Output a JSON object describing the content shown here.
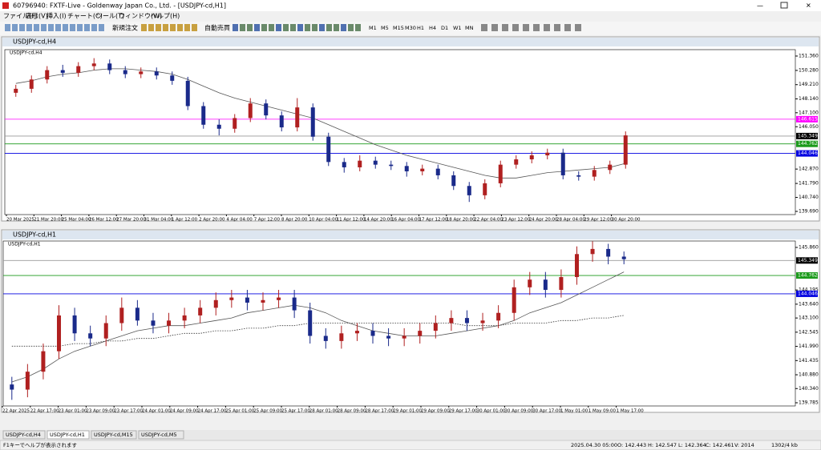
{
  "window": {
    "title": "60796940: FXTF-Live - Goldenway Japan Co., Ltd. - [USDJPY-cd,H1]"
  },
  "menu": [
    "ファイル(F)",
    "表示(V)",
    "挿入(I)",
    "チャート(C)",
    "ツール(T)",
    "ウィンドウ(W)",
    "ヘルプ(H)"
  ],
  "toolbar": {
    "buttons": [
      "新規注文",
      "自動売買"
    ],
    "timeframes": [
      "M1",
      "M5",
      "M15",
      "M30",
      "H1",
      "H4",
      "D1",
      "W1",
      "MN"
    ]
  },
  "charts": [
    {
      "window_title": "USDJPY-cd,H4",
      "symbol_label": "USDJPY-cd,H4",
      "ylim": [
        139.45,
        151.84
      ],
      "yticks": [
        {
          "value": 151.36,
          "label": "151.360"
        },
        {
          "value": 150.28,
          "label": "150.280"
        },
        {
          "value": 149.21,
          "label": "149.210"
        },
        {
          "value": 148.14,
          "label": "148.140"
        },
        {
          "value": 147.1,
          "label": "147.100"
        },
        {
          "value": 146.05,
          "label": "146.050"
        },
        {
          "value": 142.87,
          "label": "142.870"
        },
        {
          "value": 141.79,
          "label": "141.790"
        },
        {
          "value": 140.74,
          "label": "140.740"
        },
        {
          "value": 139.69,
          "label": "139.690"
        }
      ],
      "levels": [
        {
          "value": 146.615,
          "color": "#ff00ff"
        },
        {
          "value": 145.349,
          "color": "#9a9a9a"
        },
        {
          "value": 144.762,
          "color": "#1a9a1a"
        },
        {
          "value": 144.046,
          "color": "#0000e0"
        }
      ],
      "x_labels": [
        "20 Mar 2025",
        "21 Mar 20:00",
        "25 Mar 04:00",
        "26 Mar 12:00",
        "27 Mar 20:00",
        "31 Mar 04:00",
        "1 Apr 12:00",
        "2 Apr 20:00",
        "4 Apr 04:00",
        "7 Apr 12:00",
        "8 Apr 20:00",
        "10 Apr 04:00",
        "11 Apr 12:00",
        "14 Apr 20:00",
        "16 Apr 04:00",
        "17 Apr 12:00",
        "18 Apr 20:00",
        "22 Apr 04:00",
        "23 Apr 12:00",
        "24 Apr 20:00",
        "28 Apr 04:00",
        "29 Apr 12:00",
        "30 Apr 20:00"
      ],
      "candles": [
        [
          148.6,
          149.2,
          148.3,
          148.9
        ],
        [
          148.9,
          149.9,
          148.6,
          149.6
        ],
        [
          149.6,
          150.6,
          149.3,
          150.3
        ],
        [
          150.3,
          150.7,
          149.8,
          150.1
        ],
        [
          150.1,
          150.9,
          149.8,
          150.6
        ],
        [
          150.6,
          151.2,
          150.3,
          150.8
        ],
        [
          150.8,
          151.1,
          150.0,
          150.3
        ],
        [
          150.3,
          150.6,
          149.7,
          150.0
        ],
        [
          150.0,
          150.5,
          149.7,
          150.2
        ],
        [
          150.2,
          150.5,
          149.6,
          149.9
        ],
        [
          149.9,
          150.2,
          149.2,
          149.5
        ],
        [
          149.5,
          149.8,
          147.3,
          147.6
        ],
        [
          147.6,
          147.9,
          145.9,
          146.2
        ],
        [
          146.2,
          146.6,
          145.4,
          145.9
        ],
        [
          145.9,
          147.0,
          145.6,
          146.7
        ],
        [
          146.7,
          148.2,
          146.4,
          147.8
        ],
        [
          147.8,
          148.1,
          146.6,
          146.9
        ],
        [
          146.9,
          147.2,
          145.7,
          146.0
        ],
        [
          146.0,
          148.2,
          145.7,
          147.5
        ],
        [
          147.5,
          147.8,
          145.0,
          145.3
        ],
        [
          145.3,
          145.6,
          143.1,
          143.4
        ],
        [
          143.4,
          143.7,
          142.6,
          143.0
        ],
        [
          143.0,
          143.9,
          142.7,
          143.5
        ],
        [
          143.5,
          143.8,
          142.9,
          143.2
        ],
        [
          143.2,
          143.5,
          142.8,
          143.1
        ],
        [
          143.1,
          143.4,
          142.3,
          142.7
        ],
        [
          142.7,
          143.2,
          142.4,
          142.9
        ],
        [
          142.9,
          143.2,
          142.1,
          142.4
        ],
        [
          142.4,
          142.7,
          141.3,
          141.6
        ],
        [
          141.6,
          141.9,
          140.4,
          140.9
        ],
        [
          140.9,
          142.1,
          140.6,
          141.8
        ],
        [
          141.8,
          143.5,
          141.5,
          143.2
        ],
        [
          143.2,
          143.9,
          142.9,
          143.6
        ],
        [
          143.6,
          144.2,
          143.3,
          143.9
        ],
        [
          143.9,
          144.4,
          143.6,
          144.1
        ],
        [
          144.1,
          144.4,
          142.1,
          142.4
        ],
        [
          142.4,
          142.7,
          142.0,
          142.3
        ],
        [
          142.3,
          143.1,
          142.0,
          142.8
        ],
        [
          142.8,
          143.5,
          142.5,
          143.2
        ],
        [
          143.2,
          145.7,
          142.9,
          145.4
        ]
      ],
      "ma": [
        149.3,
        149.5,
        149.8,
        150.0,
        150.1,
        150.3,
        150.4,
        150.4,
        150.3,
        150.2,
        150.0,
        149.6,
        149.1,
        148.6,
        148.2,
        147.9,
        147.6,
        147.3,
        147.0,
        146.7,
        146.2,
        145.7,
        145.2,
        144.7,
        144.3,
        143.9,
        143.6,
        143.3,
        143.0,
        142.7,
        142.4,
        142.2,
        142.2,
        142.4,
        142.6,
        142.7,
        142.8,
        142.9,
        143.0,
        143.3
      ]
    },
    {
      "window_title": "USDJPY-cd,H1",
      "symbol_label": "USDJPY-cd,H1",
      "ylim": [
        139.66,
        146.11
      ],
      "yticks": [
        {
          "value": 145.86,
          "label": "145.860"
        },
        {
          "value": 144.195,
          "label": "144.195"
        },
        {
          "value": 143.64,
          "label": "143.640"
        },
        {
          "value": 143.1,
          "label": "143.100"
        },
        {
          "value": 142.545,
          "label": "142.545"
        },
        {
          "value": 141.99,
          "label": "141.990"
        },
        {
          "value": 141.435,
          "label": "141.435"
        },
        {
          "value": 140.88,
          "label": "140.880"
        },
        {
          "value": 140.34,
          "label": "140.340"
        },
        {
          "value": 139.785,
          "label": "139.785"
        }
      ],
      "levels": [
        {
          "value": 145.349,
          "color": "#9a9a9a"
        },
        {
          "value": 144.762,
          "color": "#1a9a1a"
        },
        {
          "value": 144.046,
          "color": "#0000e0"
        }
      ],
      "x_labels": [
        "22 Apr 2025",
        "22 Apr 17:00",
        "23 Apr 01:00",
        "23 Apr 09:00",
        "23 Apr 17:00",
        "24 Apr 01:00",
        "24 Apr 09:00",
        "24 Apr 17:00",
        "25 Apr 01:00",
        "25 Apr 09:00",
        "25 Apr 17:00",
        "28 Apr 01:00",
        "28 Apr 09:00",
        "28 Apr 17:00",
        "29 Apr 01:00",
        "29 Apr 09:00",
        "29 Apr 17:00",
        "30 Apr 01:00",
        "30 Apr 09:00",
        "30 Apr 17:00",
        "1 May 01:00",
        "1 May 09:00",
        "1 May 17:00"
      ],
      "candles": [
        [
          140.5,
          140.8,
          139.9,
          140.3
        ],
        [
          140.3,
          141.3,
          140.0,
          141.0
        ],
        [
          141.0,
          142.1,
          140.7,
          141.8
        ],
        [
          141.8,
          143.6,
          141.5,
          143.2
        ],
        [
          143.2,
          143.5,
          142.2,
          142.5
        ],
        [
          142.5,
          142.8,
          142.0,
          142.3
        ],
        [
          142.3,
          143.2,
          142.0,
          142.9
        ],
        [
          142.9,
          143.9,
          142.6,
          143.5
        ],
        [
          143.5,
          143.8,
          142.8,
          143.0
        ],
        [
          143.0,
          143.3,
          142.5,
          142.8
        ],
        [
          142.8,
          143.3,
          142.5,
          143.0
        ],
        [
          143.0,
          143.5,
          142.7,
          143.2
        ],
        [
          143.2,
          143.8,
          142.9,
          143.5
        ],
        [
          143.5,
          144.1,
          143.2,
          143.8
        ],
        [
          143.8,
          144.2,
          143.5,
          143.9
        ],
        [
          143.9,
          144.2,
          143.4,
          143.7
        ],
        [
          143.7,
          144.1,
          143.4,
          143.8
        ],
        [
          143.8,
          144.2,
          143.5,
          143.9
        ],
        [
          143.9,
          144.2,
          143.1,
          143.4
        ],
        [
          143.4,
          143.7,
          142.1,
          142.4
        ],
        [
          142.4,
          142.7,
          141.9,
          142.2
        ],
        [
          142.2,
          142.8,
          141.9,
          142.5
        ],
        [
          142.5,
          142.9,
          142.2,
          142.6
        ],
        [
          142.6,
          142.9,
          142.1,
          142.4
        ],
        [
          142.4,
          142.7,
          142.0,
          142.3
        ],
        [
          142.3,
          142.7,
          142.0,
          142.4
        ],
        [
          142.4,
          142.9,
          142.1,
          142.6
        ],
        [
          142.6,
          143.2,
          142.3,
          142.9
        ],
        [
          142.9,
          143.4,
          142.6,
          143.1
        ],
        [
          143.1,
          143.4,
          142.6,
          142.9
        ],
        [
          142.9,
          143.3,
          142.6,
          143.0
        ],
        [
          143.0,
          143.6,
          142.7,
          143.3
        ],
        [
          143.3,
          144.6,
          143.0,
          144.3
        ],
        [
          144.3,
          144.9,
          144.0,
          144.6
        ],
        [
          144.6,
          144.9,
          143.9,
          144.2
        ],
        [
          144.2,
          145.0,
          143.9,
          144.7
        ],
        [
          144.7,
          145.9,
          144.4,
          145.6
        ],
        [
          145.6,
          146.1,
          145.3,
          145.8
        ],
        [
          145.8,
          146.0,
          145.2,
          145.5
        ],
        [
          145.5,
          145.7,
          145.2,
          145.4
        ]
      ],
      "ma": [
        140.6,
        140.8,
        141.1,
        141.5,
        141.8,
        142.0,
        142.2,
        142.4,
        142.6,
        142.7,
        142.8,
        142.8,
        142.9,
        143.0,
        143.1,
        143.3,
        143.4,
        143.5,
        143.6,
        143.5,
        143.3,
        143.0,
        142.8,
        142.6,
        142.5,
        142.4,
        142.4,
        142.4,
        142.5,
        142.6,
        142.7,
        142.8,
        143.0,
        143.3,
        143.5,
        143.7,
        144.0,
        144.3,
        144.6,
        144.9
      ],
      "ma2": [
        142.0,
        142.0,
        142.0,
        142.0,
        142.1,
        142.1,
        142.2,
        142.2,
        142.3,
        142.3,
        142.4,
        142.5,
        142.5,
        142.6,
        142.6,
        142.7,
        142.7,
        142.8,
        142.8,
        142.9,
        142.9,
        142.9,
        142.9,
        142.9,
        142.9,
        142.9,
        142.9,
        142.9,
        142.9,
        142.8,
        142.8,
        142.8,
        142.9,
        142.9,
        142.9,
        143.0,
        143.0,
        143.1,
        143.1,
        143.2
      ]
    }
  ],
  "tabs": [
    "USDJPY-cd,H4",
    "USDJPY-cd,H1",
    "USDJPY-cd,M15",
    "USDJPY-cd,M5"
  ],
  "status": {
    "help": "F1キーでヘルプが表示されます",
    "time": "2025.04.30 05:00",
    "open": "O: 142.443",
    "high": "H: 142.547",
    "low": "L: 142.364",
    "close": "C: 142.461",
    "volume": "V: 2014",
    "memory": "1302/4 kb"
  }
}
